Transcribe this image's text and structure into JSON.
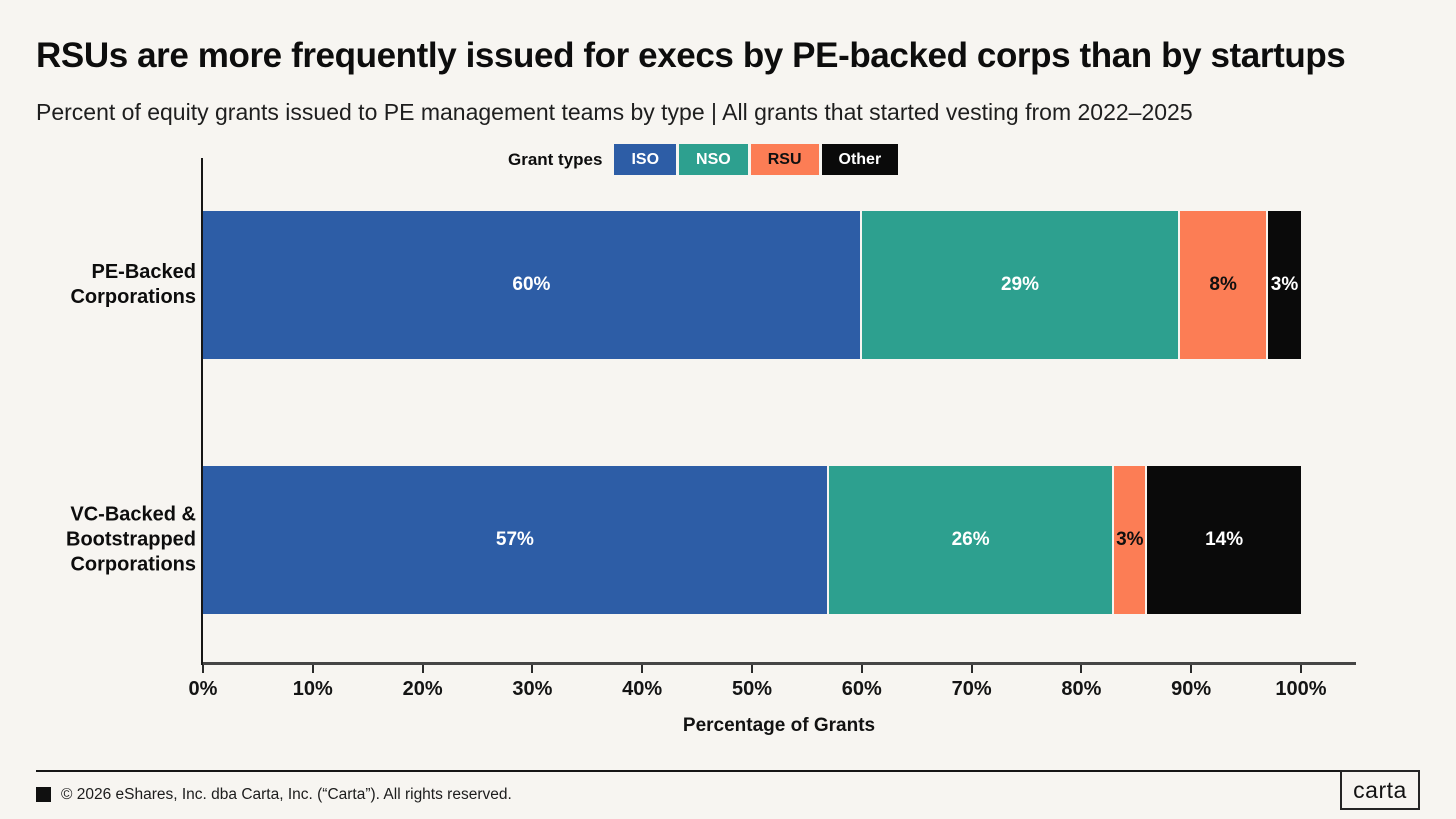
{
  "header": {
    "title": "RSUs are more frequently issued for execs by PE-backed corps than by startups",
    "subtitle": "Percent of equity grants issued to PE management teams by type | All grants that started vesting from 2022–2025"
  },
  "legend": {
    "title": "Grant types",
    "items": [
      {
        "label": "ISO",
        "color": "#2d5da6",
        "text_color": "#ffffff"
      },
      {
        "label": "NSO",
        "color": "#2da08f",
        "text_color": "#ffffff"
      },
      {
        "label": "RSU",
        "color": "#fc7d55",
        "text_color": "#101010"
      },
      {
        "label": "Other",
        "color": "#0a0a0a",
        "text_color": "#ffffff"
      }
    ]
  },
  "chart_data": {
    "type": "bar",
    "orientation": "horizontal",
    "stacked": true,
    "title": "RSUs are more frequently issued for execs by PE-backed corps than by startups",
    "subtitle": "Percent of equity grants issued to PE management teams by type | All grants that started vesting from 2022–2025",
    "categories": [
      "PE-Backed Corporations",
      "VC-Backed & Bootstrapped Corporations"
    ],
    "category_label_lines": [
      [
        "PE-Backed",
        "Corporations"
      ],
      [
        "VC-Backed &",
        "Bootstrapped",
        "Corporations"
      ]
    ],
    "series": [
      {
        "name": "ISO",
        "color": "#2d5da6",
        "label_color": "#ffffff",
        "values": [
          60,
          57
        ]
      },
      {
        "name": "NSO",
        "color": "#2da08f",
        "label_color": "#ffffff",
        "values": [
          29,
          26
        ]
      },
      {
        "name": "RSU",
        "color": "#fc7d55",
        "label_color": "#101010",
        "values": [
          8,
          3
        ]
      },
      {
        "name": "Other",
        "color": "#0a0a0a",
        "label_color": "#ffffff",
        "values": [
          3,
          14
        ]
      }
    ],
    "value_suffix": "%",
    "xlabel": "Percentage of Grants",
    "x_ticks": [
      "0%",
      "10%",
      "20%",
      "30%",
      "40%",
      "50%",
      "60%",
      "70%",
      "80%",
      "90%",
      "100%"
    ],
    "xlim": [
      0,
      100
    ],
    "grid": false,
    "legend_title": "Grant types",
    "legend_position": "top"
  },
  "footer": {
    "copyright": "© 2026 eShares, Inc. dba Carta, Inc. (“Carta”). All rights reserved.",
    "logo_text": "carta"
  },
  "colors": {
    "background": "#f7f5f1",
    "bar_blue": "#2d5da6",
    "bar_teal": "#2da08f",
    "bar_orange": "#fc7d55",
    "bar_black": "#0a0a0a",
    "axis": "#454545",
    "text": "#111111"
  }
}
